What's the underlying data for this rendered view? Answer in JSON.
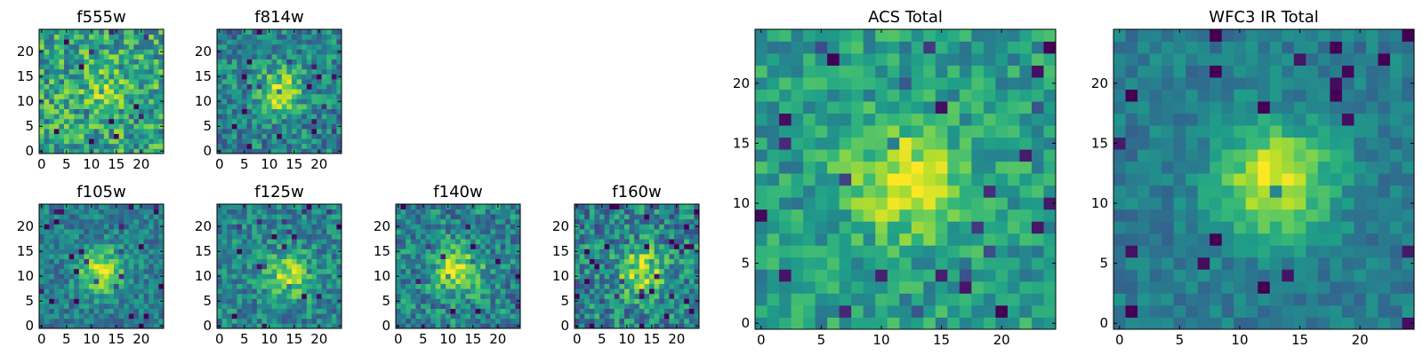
{
  "figure": {
    "background": "#ffffff"
  },
  "chart_data": [
    {
      "type": "heatmap",
      "title": "f555w",
      "xticks": [
        "0",
        "5",
        "10",
        "15",
        "20"
      ],
      "yticks": [
        "0",
        "5",
        "10",
        "15",
        "20"
      ],
      "xlim": [
        0,
        25
      ],
      "ylim": [
        0,
        25
      ],
      "grid": false,
      "colormap": "viridis",
      "seed": 11,
      "peak": 0.18,
      "noise": 0.55,
      "base": 0.58,
      "center": [
        13,
        12
      ]
    },
    {
      "type": "heatmap",
      "title": "f814w",
      "xticks": [
        "0",
        "5",
        "10",
        "15",
        "20"
      ],
      "yticks": [
        "0",
        "5",
        "10",
        "15",
        "20"
      ],
      "xlim": [
        0,
        25
      ],
      "ylim": [
        0,
        25
      ],
      "grid": false,
      "colormap": "viridis",
      "seed": 23,
      "peak": 0.45,
      "noise": 0.45,
      "base": 0.45,
      "center": [
        12,
        12
      ]
    },
    {
      "type": "heatmap",
      "title": "f105w",
      "xticks": [
        "0",
        "5",
        "10",
        "15",
        "20"
      ],
      "yticks": [
        "0",
        "5",
        "10",
        "15",
        "20"
      ],
      "xlim": [
        0,
        25
      ],
      "ylim": [
        0,
        25
      ],
      "grid": false,
      "colormap": "viridis",
      "seed": 37,
      "peak": 0.5,
      "noise": 0.35,
      "base": 0.42,
      "center": [
        12,
        11
      ]
    },
    {
      "type": "heatmap",
      "title": "f125w",
      "xticks": [
        "0",
        "5",
        "10",
        "15",
        "20"
      ],
      "yticks": [
        "0",
        "5",
        "10",
        "15",
        "20"
      ],
      "xlim": [
        0,
        25
      ],
      "ylim": [
        0,
        25
      ],
      "grid": false,
      "colormap": "viridis",
      "seed": 41,
      "peak": 0.42,
      "noise": 0.4,
      "base": 0.45,
      "center": [
        14,
        10
      ]
    },
    {
      "type": "heatmap",
      "title": "f140w",
      "xticks": [
        "0",
        "5",
        "10",
        "15",
        "20"
      ],
      "yticks": [
        "0",
        "5",
        "10",
        "15",
        "20"
      ],
      "xlim": [
        0,
        25
      ],
      "ylim": [
        0,
        25
      ],
      "grid": false,
      "colormap": "viridis",
      "seed": 53,
      "peak": 0.48,
      "noise": 0.45,
      "base": 0.45,
      "center": [
        12,
        11
      ]
    },
    {
      "type": "heatmap",
      "title": "f160w",
      "xticks": [
        "0",
        "5",
        "10",
        "15",
        "20"
      ],
      "yticks": [
        "0",
        "5",
        "10",
        "15",
        "20"
      ],
      "xlim": [
        0,
        25
      ],
      "ylim": [
        0,
        25
      ],
      "grid": false,
      "colormap": "viridis",
      "seed": 67,
      "peak": 0.45,
      "noise": 0.5,
      "base": 0.45,
      "center": [
        13,
        11
      ]
    },
    {
      "type": "heatmap",
      "title": "ACS Total",
      "xticks": [
        "0",
        "5",
        "10",
        "15",
        "20"
      ],
      "yticks": [
        "0",
        "5",
        "10",
        "15",
        "20"
      ],
      "xlim": [
        0,
        25
      ],
      "ylim": [
        0,
        25
      ],
      "grid": false,
      "colormap": "viridis",
      "seed": 71,
      "peak": 0.4,
      "noise": 0.35,
      "base": 0.55,
      "center": [
        12,
        12
      ]
    },
    {
      "type": "heatmap",
      "title": "WFC3 IR Total",
      "xticks": [
        "0",
        "5",
        "10",
        "15",
        "20"
      ],
      "yticks": [
        "0",
        "5",
        "10",
        "15",
        "20"
      ],
      "xlim": [
        0,
        25
      ],
      "ylim": [
        0,
        25
      ],
      "grid": false,
      "colormap": "viridis",
      "seed": 89,
      "peak": 0.55,
      "noise": 0.22,
      "base": 0.42,
      "center": [
        13,
        12
      ]
    }
  ]
}
